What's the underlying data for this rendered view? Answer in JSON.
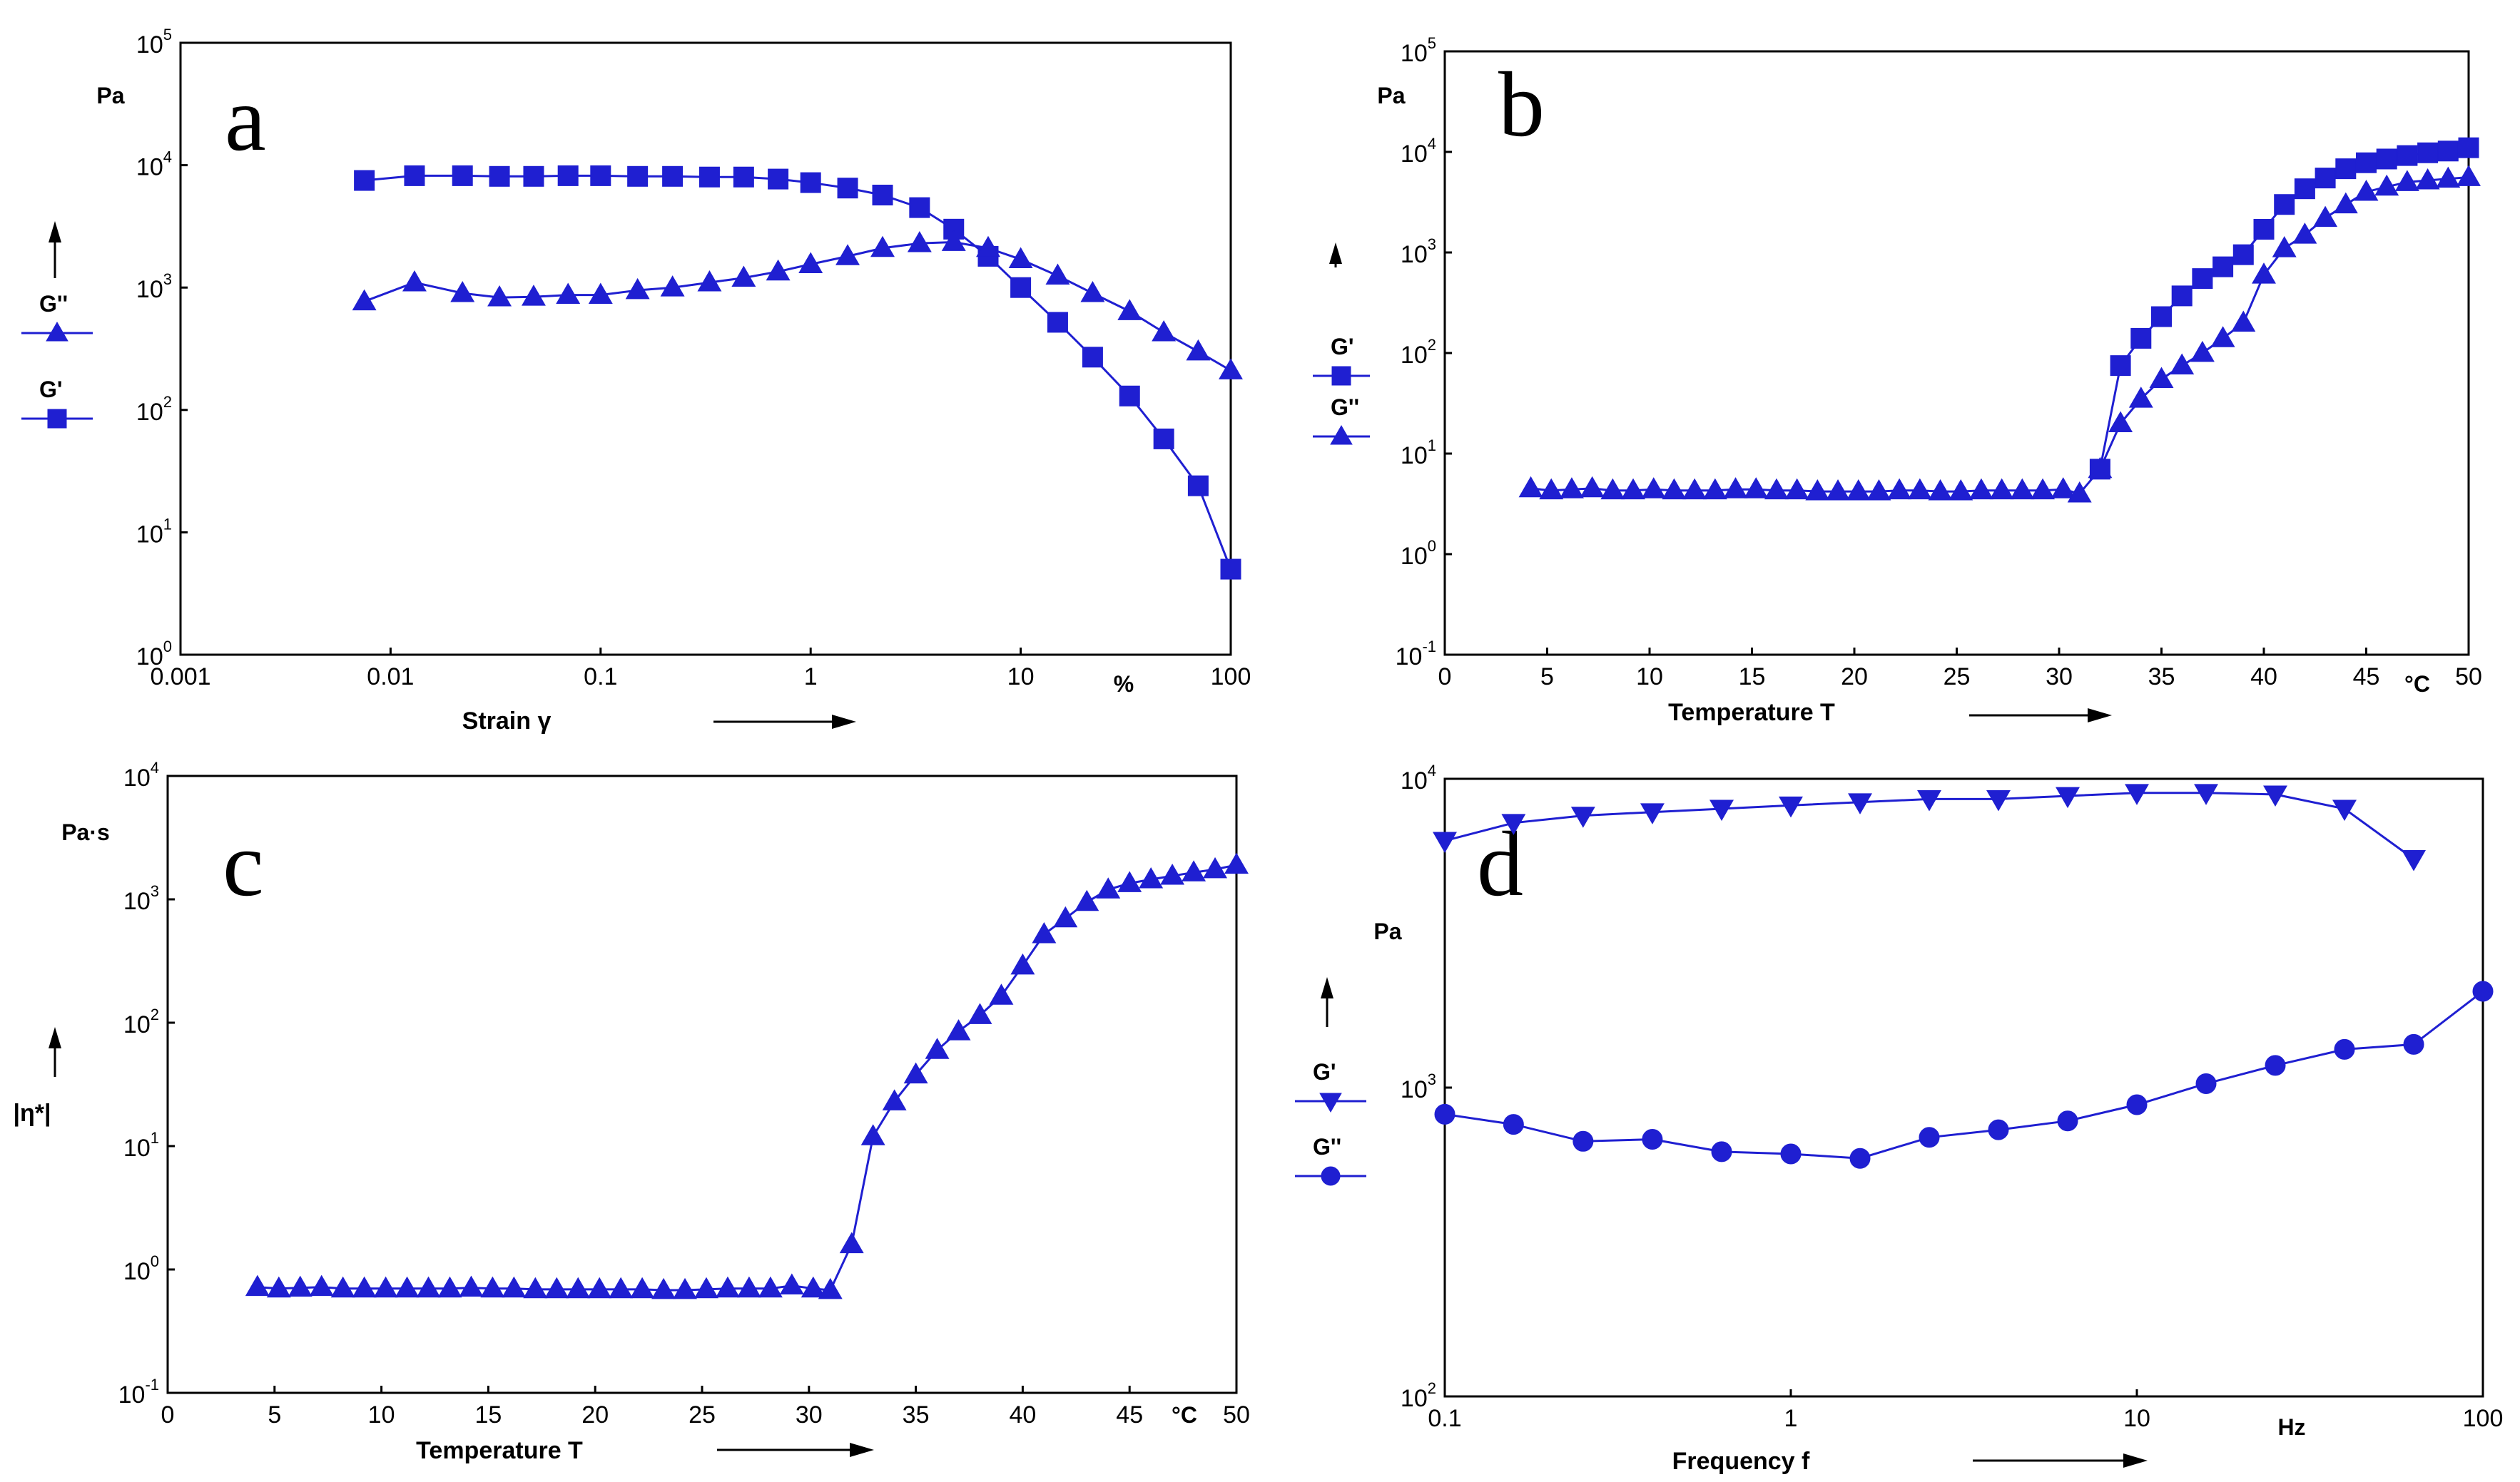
{
  "chart_data": [
    {
      "id": "a",
      "type": "line",
      "panel_letter": "a",
      "xscale": "log",
      "xlim": [
        0.001,
        100
      ],
      "yscale": "log",
      "ylim": [
        1,
        100000
      ],
      "xticks": [
        {
          "value": 0.001,
          "label": "0.001"
        },
        {
          "value": 0.01,
          "label": "0.01"
        },
        {
          "value": 0.1,
          "label": "0.1"
        },
        {
          "value": 1,
          "label": "1"
        },
        {
          "value": 10,
          "label": "10"
        },
        {
          "value": 100,
          "label": "100"
        }
      ],
      "xunit": "%",
      "xlabel": "Strain γ",
      "yunit": "Pa",
      "yticks": [
        {
          "value": 1,
          "base": "10",
          "exp": "0"
        },
        {
          "value": 10,
          "base": "10",
          "exp": "1"
        },
        {
          "value": 100,
          "base": "10",
          "exp": "2"
        },
        {
          "value": 1000,
          "base": "10",
          "exp": "3"
        },
        {
          "value": 10000,
          "base": "10",
          "exp": "4"
        },
        {
          "value": 100000,
          "base": "10",
          "exp": "5"
        }
      ],
      "legend": [
        {
          "label": "G''",
          "marker": "triangle"
        },
        {
          "label": "G'",
          "marker": "square"
        }
      ],
      "series": [
        {
          "name": "G'",
          "marker": "square",
          "x": [
            0.0075,
            0.013,
            0.022,
            0.033,
            0.048,
            0.07,
            0.1,
            0.15,
            0.22,
            0.33,
            0.48,
            0.7,
            1.0,
            1.5,
            2.2,
            3.3,
            4.8,
            7.0,
            10,
            15,
            22,
            33,
            48,
            70,
            100
          ],
          "y": [
            7500,
            8200,
            8200,
            8100,
            8100,
            8200,
            8200,
            8100,
            8100,
            8000,
            8000,
            7700,
            7200,
            6500,
            5700,
            4500,
            3000,
            1800,
            1000,
            520,
            270,
            130,
            58,
            24,
            5
          ]
        },
        {
          "name": "G''",
          "marker": "triangle",
          "x": [
            0.0075,
            0.013,
            0.022,
            0.033,
            0.048,
            0.07,
            0.1,
            0.15,
            0.22,
            0.33,
            0.48,
            0.7,
            1.0,
            1.5,
            2.2,
            3.3,
            4.8,
            7.0,
            10,
            15,
            22,
            33,
            48,
            70,
            100
          ],
          "y": [
            770,
            1100,
            900,
            830,
            840,
            870,
            870,
            950,
            1000,
            1100,
            1200,
            1350,
            1550,
            1800,
            2100,
            2300,
            2350,
            2100,
            1700,
            1250,
            900,
            640,
            430,
            300,
            210
          ]
        }
      ]
    },
    {
      "id": "b",
      "type": "line",
      "panel_letter": "b",
      "xscale": "linear",
      "xlim": [
        0,
        50
      ],
      "yscale": "log",
      "ylim": [
        0.1,
        100000
      ],
      "xticks": [
        {
          "value": 0,
          "label": "0"
        },
        {
          "value": 5,
          "label": "5"
        },
        {
          "value": 10,
          "label": "10"
        },
        {
          "value": 15,
          "label": "15"
        },
        {
          "value": 20,
          "label": "20"
        },
        {
          "value": 25,
          "label": "25"
        },
        {
          "value": 30,
          "label": "30"
        },
        {
          "value": 35,
          "label": "35"
        },
        {
          "value": 40,
          "label": "40"
        },
        {
          "value": 45,
          "label": "45"
        },
        {
          "value": 50,
          "label": "50"
        }
      ],
      "xunit": "°C",
      "xlabel": "Temperature T",
      "yunit": "Pa",
      "yticks": [
        {
          "value": 0.1,
          "base": "10",
          "exp": "-1"
        },
        {
          "value": 1,
          "base": "10",
          "exp": "0"
        },
        {
          "value": 10,
          "base": "10",
          "exp": "1"
        },
        {
          "value": 100,
          "base": "10",
          "exp": "2"
        },
        {
          "value": 1000,
          "base": "10",
          "exp": "3"
        },
        {
          "value": 10000,
          "base": "10",
          "exp": "4"
        },
        {
          "value": 100000,
          "base": "10",
          "exp": "5"
        }
      ],
      "legend": [
        {
          "label": "G'",
          "marker": "square"
        },
        {
          "label": "G''",
          "marker": "triangle"
        }
      ],
      "series": [
        {
          "name": "G''",
          "marker": "triangle",
          "x": [
            4.2,
            5.2,
            6.2,
            7.2,
            8.2,
            9.2,
            10.2,
            11.2,
            12.2,
            13.2,
            14.2,
            15.2,
            16.2,
            17.2,
            18.2,
            19.2,
            20.2,
            21.2,
            22.2,
            23.2,
            24.2,
            25.2,
            26.2,
            27.2,
            28.2,
            29.2,
            30.2,
            31.0,
            32.0,
            33.0,
            34.0,
            35.0,
            36.0,
            37.0,
            38.0,
            39.0,
            40.0,
            41.0,
            42.0,
            43.0,
            44.0,
            45.0,
            46.0,
            47.0,
            48.0,
            49.0,
            50.0
          ],
          "y": [
            4.5,
            4.3,
            4.4,
            4.5,
            4.3,
            4.3,
            4.4,
            4.3,
            4.3,
            4.3,
            4.4,
            4.4,
            4.3,
            4.3,
            4.2,
            4.2,
            4.2,
            4.2,
            4.3,
            4.3,
            4.2,
            4.2,
            4.3,
            4.3,
            4.3,
            4.3,
            4.4,
            4.0,
            7.0,
            20,
            35,
            55,
            75,
            100,
            140,
            200,
            600,
            1100,
            1500,
            2200,
            3000,
            4000,
            4500,
            5000,
            5200,
            5400,
            5600
          ]
        },
        {
          "name": "G'",
          "marker": "square",
          "x": [
            32.0,
            33.0,
            34.0,
            35.0,
            36.0,
            37.0,
            38.0,
            39.0,
            40.0,
            41.0,
            42.0,
            43.0,
            44.0,
            45.0,
            46.0,
            47.0,
            48.0,
            49.0,
            50.0
          ],
          "y": [
            7,
            75,
            140,
            230,
            370,
            550,
            720,
            950,
            1700,
            3000,
            4300,
            5500,
            6800,
            7800,
            8500,
            9200,
            9800,
            10200,
            11000
          ]
        }
      ]
    },
    {
      "id": "c",
      "type": "line",
      "panel_letter": "c",
      "xscale": "linear",
      "xlim": [
        0,
        50
      ],
      "yscale": "log",
      "ylim": [
        0.1,
        10000
      ],
      "xticks": [
        {
          "value": 0,
          "label": "0"
        },
        {
          "value": 5,
          "label": "5"
        },
        {
          "value": 10,
          "label": "10"
        },
        {
          "value": 15,
          "label": "15"
        },
        {
          "value": 20,
          "label": "20"
        },
        {
          "value": 25,
          "label": "25"
        },
        {
          "value": 30,
          "label": "30"
        },
        {
          "value": 35,
          "label": "35"
        },
        {
          "value": 40,
          "label": "40"
        },
        {
          "value": 45,
          "label": "45"
        },
        {
          "value": 50,
          "label": "50"
        }
      ],
      "xunit": "°C",
      "xlabel": "Temperature T",
      "yunit": "Pa·s",
      "ylabel": "|η*|",
      "yticks": [
        {
          "value": 0.1,
          "base": "10",
          "exp": "-1"
        },
        {
          "value": 1,
          "base": "10",
          "exp": "0"
        },
        {
          "value": 10,
          "base": "10",
          "exp": "1"
        },
        {
          "value": 100,
          "base": "10",
          "exp": "2"
        },
        {
          "value": 1000,
          "base": "10",
          "exp": "3"
        },
        {
          "value": 10000,
          "base": "10",
          "exp": "4"
        }
      ],
      "legend": [],
      "series": [
        {
          "name": "|η*|",
          "marker": "triangle",
          "x": [
            4.2,
            5.2,
            6.2,
            7.2,
            8.2,
            9.2,
            10.2,
            11.2,
            12.2,
            13.2,
            14.2,
            15.2,
            16.2,
            17.2,
            18.2,
            19.2,
            20.2,
            21.2,
            22.2,
            23.2,
            24.2,
            25.2,
            26.2,
            27.2,
            28.2,
            29.2,
            30.2,
            31.0,
            32.0,
            33.0,
            34.0,
            35.0,
            36.0,
            37.0,
            38.0,
            39.0,
            40.0,
            41.0,
            42.0,
            43.0,
            44.0,
            45.0,
            46.0,
            47.0,
            48.0,
            49.0,
            50.0
          ],
          "y": [
            0.72,
            0.7,
            0.71,
            0.72,
            0.7,
            0.7,
            0.7,
            0.7,
            0.7,
            0.7,
            0.71,
            0.7,
            0.7,
            0.69,
            0.69,
            0.69,
            0.69,
            0.69,
            0.69,
            0.68,
            0.68,
            0.69,
            0.7,
            0.7,
            0.7,
            0.74,
            0.7,
            0.68,
            1.6,
            12,
            23,
            38,
            60,
            85,
            115,
            165,
            290,
            520,
            700,
            950,
            1200,
            1350,
            1450,
            1550,
            1650,
            1750,
            1900
          ]
        }
      ]
    },
    {
      "id": "d",
      "type": "line",
      "panel_letter": "d",
      "xscale": "log",
      "xlim": [
        0.1,
        100
      ],
      "yscale": "log",
      "ylim": [
        100,
        10000
      ],
      "xticks": [
        {
          "value": 0.1,
          "label": "0.1"
        },
        {
          "value": 1,
          "label": "1"
        },
        {
          "value": 10,
          "label": "10"
        },
        {
          "value": 100,
          "label": "100"
        }
      ],
      "xunit": "Hz",
      "xlabel": "Frequency f",
      "yunit": "Pa",
      "yticks": [
        {
          "value": 100,
          "base": "10",
          "exp": "2"
        },
        {
          "value": 1000,
          "base": "10",
          "exp": "3"
        },
        {
          "value": 10000,
          "base": "10",
          "exp": "4"
        }
      ],
      "legend": [
        {
          "label": "G'",
          "marker": "triangle-down"
        },
        {
          "label": "G''",
          "marker": "circle"
        }
      ],
      "series": [
        {
          "name": "G'",
          "marker": "triangle-down",
          "x": [
            0.1,
            0.158,
            0.251,
            0.398,
            0.631,
            1.0,
            1.585,
            2.512,
            3.981,
            6.31,
            10,
            15.85,
            25.12,
            39.81,
            63.1
          ],
          "y": [
            6300,
            7200,
            7600,
            7800,
            8000,
            8200,
            8400,
            8600,
            8600,
            8800,
            9000,
            9000,
            8900,
            8000,
            5500
          ]
        },
        {
          "name": "G''",
          "marker": "circle",
          "x": [
            0.1,
            0.158,
            0.251,
            0.398,
            0.631,
            1.0,
            1.585,
            2.512,
            3.981,
            6.31,
            10,
            15.85,
            25.12,
            39.81,
            63.1,
            100
          ],
          "y": [
            820,
            760,
            670,
            680,
            620,
            610,
            590,
            690,
            730,
            780,
            880,
            1030,
            1180,
            1330,
            1380,
            2050
          ]
        }
      ]
    }
  ]
}
